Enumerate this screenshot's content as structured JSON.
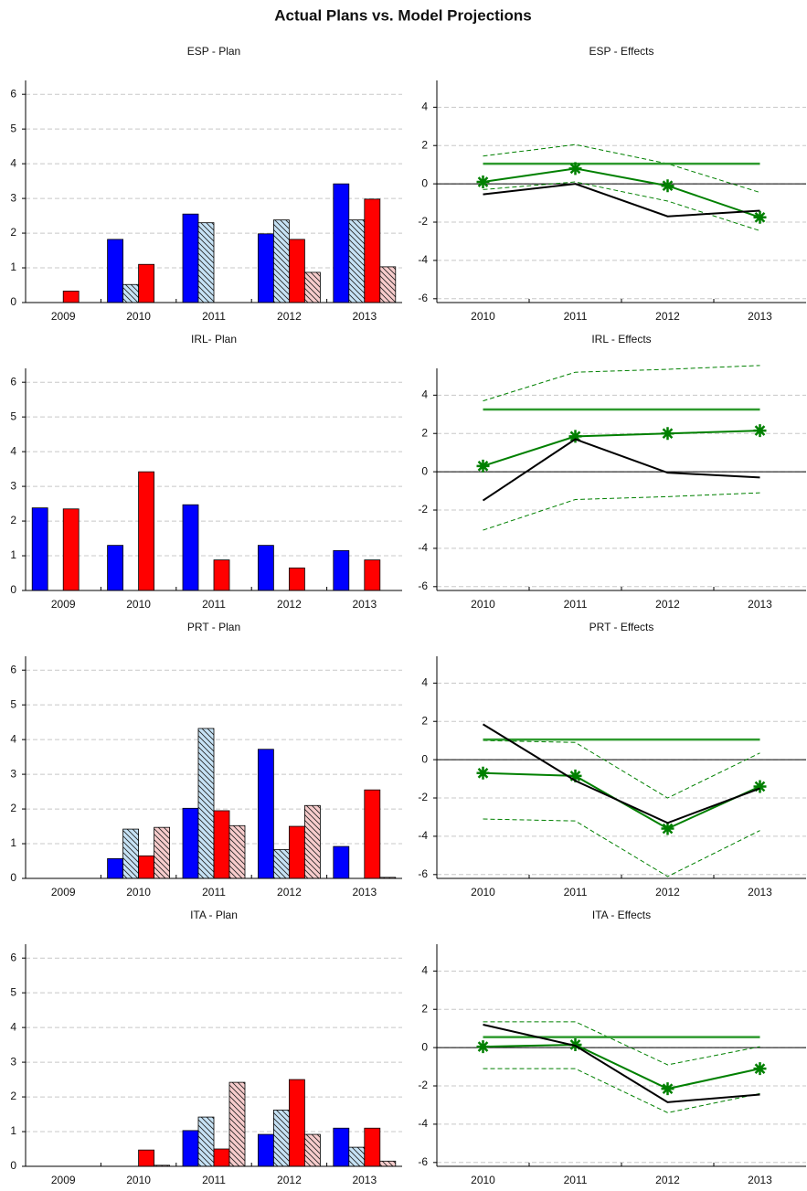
{
  "title": "Actual Plans vs. Model Projections",
  "chart_data": [
    {
      "type": "bar",
      "title": "ESP - Plan",
      "categories": [
        "2009",
        "2010",
        "2011",
        "2012",
        "2013"
      ],
      "series": [
        {
          "color": "#0000ff",
          "hatch": false,
          "values": [
            null,
            1.82,
            2.55,
            1.98,
            3.42
          ]
        },
        {
          "color": "#c6e2f5",
          "hatch": true,
          "values": [
            null,
            0.52,
            2.3,
            2.38,
            2.38
          ]
        },
        {
          "color": "#ff0000",
          "hatch": false,
          "values": [
            0.33,
            1.1,
            null,
            1.82,
            2.98
          ]
        },
        {
          "color": "#f7cccc",
          "hatch": true,
          "values": [
            null,
            null,
            null,
            0.87,
            1.03
          ]
        }
      ],
      "ylim": [
        0,
        6.4
      ],
      "yticks": [
        0,
        1,
        2,
        3,
        4,
        5,
        6
      ],
      "grid": true
    },
    {
      "type": "line",
      "title": "ESP - Effects",
      "categories": [
        "2010",
        "2011",
        "2012",
        "2013"
      ],
      "series": [
        {
          "color": "#000000",
          "style": "solid",
          "width": 2,
          "values": [
            -0.55,
            0.0,
            -1.7,
            -1.4
          ]
        },
        {
          "color": "#008000",
          "style": "solid",
          "width": 2,
          "marker": "star",
          "values": [
            0.1,
            0.8,
            -0.1,
            -1.75
          ]
        },
        {
          "color": "#2e9a2e",
          "style": "solid",
          "width": 2.5,
          "values": [
            1.05,
            1.05,
            1.05,
            1.05
          ]
        },
        {
          "color": "#008000",
          "style": "dashed",
          "width": 1,
          "values": [
            1.45,
            2.05,
            1.05,
            -0.45
          ]
        },
        {
          "color": "#008000",
          "style": "dashed",
          "width": 1,
          "values": [
            -0.3,
            0.1,
            -0.9,
            -2.45
          ]
        }
      ],
      "ylim": [
        -6.2,
        5.4
      ],
      "yticks": [
        -6,
        -4,
        -2,
        0,
        2,
        4
      ],
      "grid": true,
      "zero_line": true
    },
    {
      "type": "bar",
      "title": "IRL- Plan",
      "categories": [
        "2009",
        "2010",
        "2011",
        "2012",
        "2013"
      ],
      "series": [
        {
          "color": "#0000ff",
          "hatch": false,
          "values": [
            2.38,
            1.3,
            2.47,
            1.3,
            1.15
          ]
        },
        {
          "color": "#c6e2f5",
          "hatch": true,
          "values": [
            null,
            null,
            null,
            null,
            null
          ]
        },
        {
          "color": "#ff0000",
          "hatch": false,
          "values": [
            2.35,
            3.42,
            0.88,
            0.65,
            0.88
          ]
        },
        {
          "color": "#f7cccc",
          "hatch": true,
          "values": [
            null,
            null,
            null,
            null,
            null
          ]
        }
      ],
      "ylim": [
        0,
        6.4
      ],
      "yticks": [
        0,
        1,
        2,
        3,
        4,
        5,
        6
      ],
      "grid": true
    },
    {
      "type": "line",
      "title": "IRL - Effects",
      "categories": [
        "2010",
        "2011",
        "2012",
        "2013"
      ],
      "series": [
        {
          "color": "#000000",
          "style": "solid",
          "width": 2,
          "values": [
            -1.5,
            1.7,
            -0.05,
            -0.3
          ]
        },
        {
          "color": "#008000",
          "style": "solid",
          "width": 2,
          "marker": "star",
          "values": [
            0.3,
            1.85,
            2.0,
            2.15
          ]
        },
        {
          "color": "#2e9a2e",
          "style": "solid",
          "width": 2.5,
          "values": [
            3.25,
            3.25,
            3.25,
            3.25
          ]
        },
        {
          "color": "#008000",
          "style": "dashed",
          "width": 1,
          "values": [
            3.7,
            5.2,
            5.35,
            5.55
          ]
        },
        {
          "color": "#008000",
          "style": "dashed",
          "width": 1,
          "values": [
            -3.05,
            -1.45,
            -1.3,
            -1.1
          ]
        }
      ],
      "ylim": [
        -6.2,
        5.4
      ],
      "yticks": [
        -6,
        -4,
        -2,
        0,
        2,
        4
      ],
      "grid": true,
      "zero_line": true
    },
    {
      "type": "bar",
      "title": "PRT - Plan",
      "categories": [
        "2009",
        "2010",
        "2011",
        "2012",
        "2013"
      ],
      "series": [
        {
          "color": "#0000ff",
          "hatch": false,
          "values": [
            null,
            0.57,
            2.02,
            3.72,
            0.92
          ]
        },
        {
          "color": "#c6e2f5",
          "hatch": true,
          "values": [
            null,
            1.42,
            4.32,
            0.83,
            null
          ]
        },
        {
          "color": "#ff0000",
          "hatch": false,
          "values": [
            null,
            0.65,
            1.95,
            1.5,
            2.55
          ]
        },
        {
          "color": "#f7cccc",
          "hatch": true,
          "values": [
            null,
            1.47,
            1.52,
            2.1,
            0.03
          ]
        }
      ],
      "ylim": [
        0,
        6.4
      ],
      "yticks": [
        0,
        1,
        2,
        3,
        4,
        5,
        6
      ],
      "grid": true
    },
    {
      "type": "line",
      "title": "PRT - Effects",
      "categories": [
        "2010",
        "2011",
        "2012",
        "2013"
      ],
      "series": [
        {
          "color": "#000000",
          "style": "solid",
          "width": 2,
          "values": [
            1.85,
            -1.1,
            -3.3,
            -1.5
          ]
        },
        {
          "color": "#008000",
          "style": "solid",
          "width": 2,
          "marker": "star",
          "values": [
            -0.7,
            -0.85,
            -3.6,
            -1.4
          ]
        },
        {
          "color": "#2e9a2e",
          "style": "solid",
          "width": 2.5,
          "values": [
            1.05,
            1.05,
            1.05,
            1.05
          ]
        },
        {
          "color": "#008000",
          "style": "dashed",
          "width": 1,
          "values": [
            1.0,
            0.9,
            -2.0,
            0.35
          ]
        },
        {
          "color": "#008000",
          "style": "dashed",
          "width": 1,
          "values": [
            -3.1,
            -3.2,
            -6.1,
            -3.7
          ]
        }
      ],
      "ylim": [
        -6.2,
        5.4
      ],
      "yticks": [
        -6,
        -4,
        -2,
        0,
        2,
        4
      ],
      "grid": true,
      "zero_line": true
    },
    {
      "type": "bar",
      "title": "ITA - Plan",
      "categories": [
        "2009",
        "2010",
        "2011",
        "2012",
        "2013"
      ],
      "series": [
        {
          "color": "#0000ff",
          "hatch": false,
          "values": [
            null,
            null,
            1.03,
            0.92,
            1.1
          ]
        },
        {
          "color": "#c6e2f5",
          "hatch": true,
          "values": [
            null,
            null,
            1.42,
            1.62,
            0.55
          ]
        },
        {
          "color": "#ff0000",
          "hatch": false,
          "values": [
            null,
            0.47,
            0.5,
            2.5,
            1.1
          ]
        },
        {
          "color": "#f7cccc",
          "hatch": true,
          "values": [
            null,
            0.03,
            2.42,
            0.92,
            0.15
          ]
        }
      ],
      "ylim": [
        0,
        6.4
      ],
      "yticks": [
        0,
        1,
        2,
        3,
        4,
        5,
        6
      ],
      "grid": true
    },
    {
      "type": "line",
      "title": "ITA - Effects",
      "categories": [
        "2010",
        "2011",
        "2012",
        "2013"
      ],
      "series": [
        {
          "color": "#000000",
          "style": "solid",
          "width": 2,
          "values": [
            1.2,
            0.1,
            -2.85,
            -2.45
          ]
        },
        {
          "color": "#008000",
          "style": "solid",
          "width": 2,
          "marker": "star",
          "values": [
            0.05,
            0.15,
            -2.15,
            -1.1
          ]
        },
        {
          "color": "#2e9a2e",
          "style": "solid",
          "width": 2.5,
          "values": [
            0.55,
            0.55,
            0.55,
            0.55
          ]
        },
        {
          "color": "#008000",
          "style": "dashed",
          "width": 1,
          "values": [
            1.35,
            1.35,
            -0.9,
            0.05
          ]
        },
        {
          "color": "#008000",
          "style": "dashed",
          "width": 1,
          "values": [
            -1.1,
            -1.1,
            -3.4,
            -2.4
          ]
        }
      ],
      "ylim": [
        -6.2,
        5.4
      ],
      "yticks": [
        -6,
        -4,
        -2,
        0,
        2,
        4
      ],
      "grid": true,
      "zero_line": true
    }
  ]
}
